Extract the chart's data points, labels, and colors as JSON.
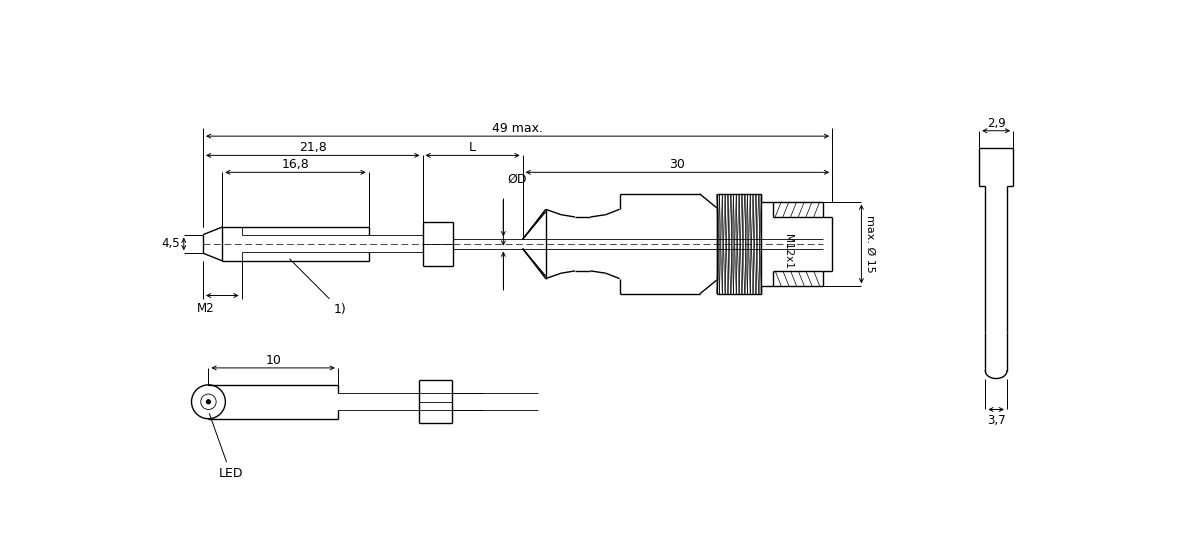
{
  "bg_color": "#ffffff",
  "line_color": "#000000",
  "lw": 1.0,
  "tlw": 0.6,
  "dlw": 0.7,
  "figsize": [
    12.0,
    5.57
  ],
  "dpi": 100,
  "annotations": {
    "dim_218": "21,8",
    "dim_L": "L",
    "dim_49max": "49 max.",
    "dim_168": "16,8",
    "dim_30": "30",
    "dim_phiD": "ØD",
    "dim_45": "4,5",
    "dim_M2": "M2",
    "dim_1": "1)",
    "dim_M12x1": "M12x1",
    "dim_maxphi15": "max. Ø 15",
    "dim_29": "2,9",
    "dim_37": "3,7",
    "dim_10": "10",
    "dim_LED": "LED"
  }
}
